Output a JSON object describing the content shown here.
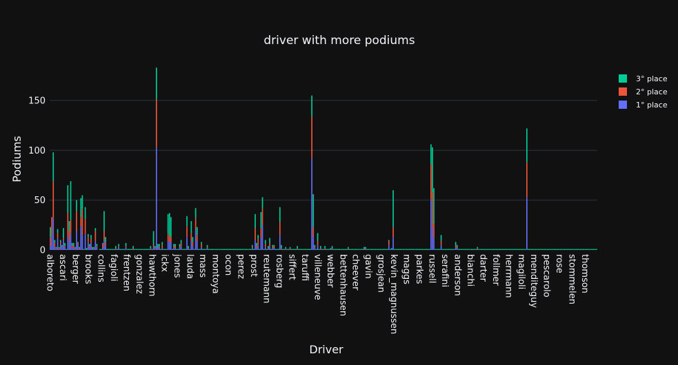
{
  "chart_data": {
    "type": "bar",
    "stacked": true,
    "title": "driver with more podiums",
    "xlabel": "Driver",
    "ylabel": "Podiums",
    "ylim": [
      0,
      190
    ],
    "y_ticks": [
      0,
      50,
      100,
      150
    ],
    "grid": true,
    "legend_position": "top-right",
    "x_tick_labels": [
      "alboreto",
      "ascari",
      "berger",
      "brooks",
      "collins",
      "fagioli",
      "frentzen",
      "gonzalez",
      "hawthorn",
      "ickx",
      "jones",
      "lauda",
      "mass",
      "montoya",
      "ocon",
      "perez",
      "prost",
      "reutemann",
      "rosberg",
      "siffert",
      "taruffi",
      "villeneuve",
      "webber",
      "bettenhausen",
      "cheever",
      "gavin",
      "grosjean",
      "kevin_magnussen",
      "maggs",
      "parkes",
      "russell",
      "serafini",
      "anderson",
      "bianchi",
      "darter",
      "follmer",
      "herrmann",
      "magiloli",
      "menditeguy",
      "pescarolo",
      "rose",
      "stommelen",
      "thomson"
    ],
    "series": [
      {
        "name": "1° place",
        "color": "#636efa",
        "values": [
          4,
          14,
          32,
          3,
          1,
          12,
          1,
          6,
          2,
          10,
          3,
          0,
          14,
          9,
          17,
          2,
          3,
          1,
          19,
          5,
          1,
          24,
          15,
          0,
          16,
          0,
          8,
          2,
          7,
          1,
          1,
          9,
          3,
          0,
          0,
          0,
          2,
          10,
          4,
          0,
          0,
          0,
          0,
          0,
          0,
          1,
          0,
          3,
          0,
          0,
          0,
          0,
          3,
          0,
          0,
          0,
          0,
          1,
          0,
          0,
          0,
          0,
          0,
          0,
          0,
          0,
          0,
          0,
          0,
          1,
          0,
          3,
          1,
          103,
          1,
          3,
          0,
          2,
          0,
          0,
          0,
          9,
          8,
          8,
          0,
          2,
          2,
          0,
          0,
          2,
          4,
          0,
          0,
          0,
          13,
          1,
          0,
          9,
          4,
          0,
          20,
          9,
          0,
          0,
          3,
          0,
          0,
          0,
          2,
          0,
          0,
          0,
          0,
          0,
          0,
          0,
          0,
          0,
          0,
          0,
          0,
          0,
          0,
          0,
          0,
          0,
          0,
          0,
          0,
          0,
          0,
          0,
          0,
          0,
          0,
          0,
          0,
          0,
          0,
          2,
          0,
          10,
          2,
          5,
          0,
          12,
          25,
          0,
          3,
          0,
          1,
          4,
          0,
          2,
          2,
          0,
          0,
          0,
          15,
          1,
          0,
          0,
          1,
          0,
          0,
          1,
          0,
          0,
          0,
          0,
          1,
          0,
          0,
          0,
          0,
          0,
          0,
          0,
          0,
          0,
          92,
          13,
          2,
          0,
          5,
          0,
          1,
          0,
          0,
          1,
          0,
          0,
          0,
          1,
          1,
          0,
          0,
          0,
          0,
          0,
          0,
          0,
          0,
          0,
          0,
          1,
          0,
          0,
          0,
          0,
          0,
          0,
          0,
          0,
          0,
          0,
          1,
          1,
          0,
          0,
          0,
          0,
          0,
          0,
          0,
          0,
          0,
          0,
          0,
          0,
          0,
          0,
          0,
          5,
          0,
          1,
          13,
          0,
          0,
          0,
          0,
          0,
          0,
          0,
          0,
          0,
          0,
          0,
          0,
          0,
          0,
          0,
          0,
          0,
          0,
          0,
          0,
          0,
          0,
          0,
          0,
          0,
          51,
          23,
          12,
          0,
          0,
          0,
          0,
          5,
          0,
          0,
          0,
          0,
          0,
          0,
          0,
          0,
          0,
          3,
          2,
          0,
          0,
          0,
          0,
          0,
          0,
          0,
          0,
          0,
          0,
          0,
          0,
          0,
          1,
          0,
          0,
          0,
          0,
          0,
          0,
          0,
          0,
          0,
          0,
          0,
          0,
          0,
          0,
          0,
          0,
          0,
          0,
          0,
          0,
          0,
          0,
          0,
          0,
          0,
          0,
          0,
          0,
          0,
          0,
          0,
          0,
          0,
          53,
          0,
          0,
          0,
          0,
          0,
          0,
          0,
          0,
          0,
          0,
          0,
          0,
          0,
          0,
          0,
          0,
          0,
          0,
          0,
          0,
          0,
          0,
          0,
          0,
          0,
          0,
          0,
          0,
          0,
          0,
          0,
          0,
          0,
          0,
          0,
          0,
          0,
          0,
          0,
          0,
          0,
          0,
          0,
          0,
          0,
          0,
          0,
          0
        ]
      },
      {
        "name": "2° place",
        "color": "#ef553b",
        "values": [
          9,
          19,
          37,
          4,
          1,
          5,
          1,
          2,
          1,
          2,
          1,
          0,
          23,
          10,
          13,
          2,
          2,
          1,
          20,
          2,
          1,
          9,
          26,
          0,
          15,
          0,
          5,
          2,
          4,
          0,
          1,
          10,
          1,
          0,
          0,
          0,
          4,
          9,
          4,
          0,
          0,
          0,
          0,
          0,
          0,
          1,
          0,
          1,
          0,
          0,
          0,
          0,
          1,
          0,
          0,
          0,
          0,
          1,
          0,
          0,
          0,
          0,
          0,
          0,
          0,
          0,
          0,
          0,
          0,
          1,
          0,
          2,
          1,
          48,
          1,
          1,
          0,
          3,
          0,
          0,
          0,
          7,
          6,
          5,
          0,
          1,
          2,
          0,
          0,
          1,
          3,
          0,
          0,
          0,
          11,
          1,
          0,
          8,
          4,
          0,
          12,
          6,
          0,
          0,
          3,
          0,
          0,
          0,
          1,
          0,
          0,
          0,
          0,
          0,
          0,
          0,
          0,
          0,
          0,
          0,
          0,
          0,
          0,
          0,
          0,
          0,
          0,
          0,
          0,
          0,
          0,
          0,
          0,
          0,
          0,
          0,
          0,
          0,
          0,
          1,
          0,
          12,
          2,
          6,
          0,
          10,
          16,
          0,
          3,
          0,
          1,
          3,
          0,
          1,
          2,
          0,
          0,
          0,
          13,
          1,
          0,
          0,
          1,
          0,
          0,
          1,
          0,
          0,
          0,
          0,
          1,
          0,
          0,
          0,
          0,
          0,
          0,
          0,
          0,
          0,
          42,
          10,
          1,
          0,
          4,
          0,
          1,
          0,
          0,
          1,
          0,
          0,
          0,
          0,
          1,
          0,
          0,
          0,
          0,
          0,
          0,
          0,
          0,
          0,
          0,
          1,
          0,
          0,
          0,
          0,
          0,
          0,
          0,
          0,
          0,
          0,
          0,
          1,
          0,
          0,
          0,
          0,
          0,
          0,
          0,
          0,
          0,
          0,
          0,
          0,
          0,
          0,
          0,
          4,
          0,
          0,
          10,
          0,
          0,
          0,
          0,
          0,
          0,
          0,
          0,
          0,
          0,
          0,
          0,
          0,
          0,
          0,
          0,
          0,
          0,
          0,
          0,
          0,
          0,
          0,
          0,
          0,
          35,
          35,
          14,
          0,
          0,
          0,
          0,
          4,
          0,
          0,
          0,
          0,
          0,
          0,
          0,
          0,
          0,
          2,
          1,
          0,
          0,
          0,
          0,
          0,
          0,
          0,
          0,
          0,
          0,
          0,
          0,
          0,
          1,
          0,
          0,
          0,
          0,
          0,
          0,
          0,
          0,
          0,
          0,
          0,
          0,
          0,
          0,
          0,
          0,
          0,
          0,
          0,
          0,
          0,
          0,
          0,
          0,
          0,
          0,
          0,
          0,
          0,
          0,
          0,
          0,
          0,
          35,
          0,
          0,
          0,
          0,
          0,
          0,
          0,
          0,
          0,
          0,
          0,
          0,
          0,
          0,
          0,
          0,
          0,
          0,
          0,
          0,
          0,
          0,
          0,
          0,
          0,
          0,
          0,
          0,
          0,
          0,
          0,
          0,
          0,
          0,
          0,
          0,
          0,
          0,
          0,
          0,
          0,
          0,
          0,
          0,
          0,
          0,
          0,
          0,
          0
        ]
      },
      {
        "name": "3° place",
        "color": "#00cc96",
        "values": [
          10,
          0,
          29,
          3,
          1,
          4,
          1,
          2,
          2,
          10,
          3,
          1,
          28,
          10,
          39,
          3,
          2,
          1,
          11,
          1,
          1,
          19,
          14,
          1,
          12,
          2,
          3,
          2,
          4,
          2,
          1,
          3,
          2,
          0,
          1,
          1,
          1,
          20,
          5,
          1,
          1,
          1,
          1,
          1,
          1,
          2,
          1,
          2,
          1,
          1,
          1,
          1,
          3,
          1,
          1,
          1,
          1,
          2,
          1,
          1,
          1,
          1,
          1,
          1,
          1,
          1,
          1,
          1,
          1,
          2,
          1,
          14,
          2,
          32,
          4,
          2,
          1,
          3,
          1,
          1,
          1,
          20,
          23,
          20,
          1,
          3,
          2,
          1,
          1,
          3,
          3,
          1,
          1,
          1,
          10,
          2,
          1,
          12,
          5,
          1,
          10,
          8,
          1,
          1,
          2,
          1,
          1,
          1,
          2,
          1,
          1,
          1,
          1,
          1,
          1,
          1,
          1,
          1,
          1,
          1,
          1,
          1,
          1,
          1,
          1,
          1,
          1,
          1,
          1,
          1,
          1,
          1,
          1,
          1,
          1,
          1,
          1,
          1,
          1,
          2,
          1,
          14,
          3,
          4,
          1,
          16,
          12,
          1,
          4,
          1,
          2,
          5,
          1,
          2,
          1,
          1,
          1,
          1,
          15,
          3,
          1,
          1,
          1,
          1,
          1,
          1,
          1,
          1,
          1,
          1,
          2,
          1,
          1,
          1,
          1,
          1,
          1,
          1,
          1,
          1,
          21,
          33,
          2,
          1,
          8,
          1,
          2,
          1,
          1,
          2,
          1,
          1,
          1,
          1,
          2,
          1,
          1,
          1,
          1,
          1,
          1,
          1,
          1,
          1,
          1,
          1,
          1,
          1,
          1,
          1,
          1,
          1,
          1,
          1,
          1,
          1,
          2,
          1,
          1,
          1,
          1,
          1,
          1,
          1,
          1,
          1,
          1,
          1,
          1,
          1,
          1,
          1,
          1,
          1,
          1,
          1,
          37,
          1,
          1,
          1,
          1,
          1,
          1,
          1,
          1,
          1,
          1,
          1,
          1,
          1,
          1,
          1,
          1,
          1,
          1,
          1,
          1,
          1,
          1,
          1,
          1,
          1,
          20,
          45,
          36,
          1,
          1,
          1,
          1,
          6,
          1,
          1,
          1,
          1,
          1,
          1,
          1,
          1,
          1,
          3,
          2,
          1,
          1,
          1,
          1,
          1,
          1,
          1,
          1,
          1,
          1,
          1,
          1,
          1,
          1,
          1,
          1,
          1,
          1,
          1,
          1,
          1,
          1,
          1,
          1,
          1,
          1,
          1,
          1,
          1,
          1,
          1,
          1,
          1,
          1,
          1,
          1,
          1,
          1,
          1,
          1,
          1,
          1,
          1,
          1,
          1,
          1,
          1,
          34,
          1,
          1,
          1,
          1,
          1,
          1,
          1,
          1,
          1,
          1,
          1,
          1,
          1,
          1,
          1,
          1,
          1,
          1,
          1,
          1,
          1,
          1,
          1,
          1,
          1,
          1,
          1,
          1,
          1,
          1,
          1,
          1,
          1,
          1,
          1,
          1,
          1,
          1,
          1,
          1,
          1,
          1,
          1,
          1,
          1,
          1,
          1,
          1,
          1
        ]
      }
    ]
  }
}
